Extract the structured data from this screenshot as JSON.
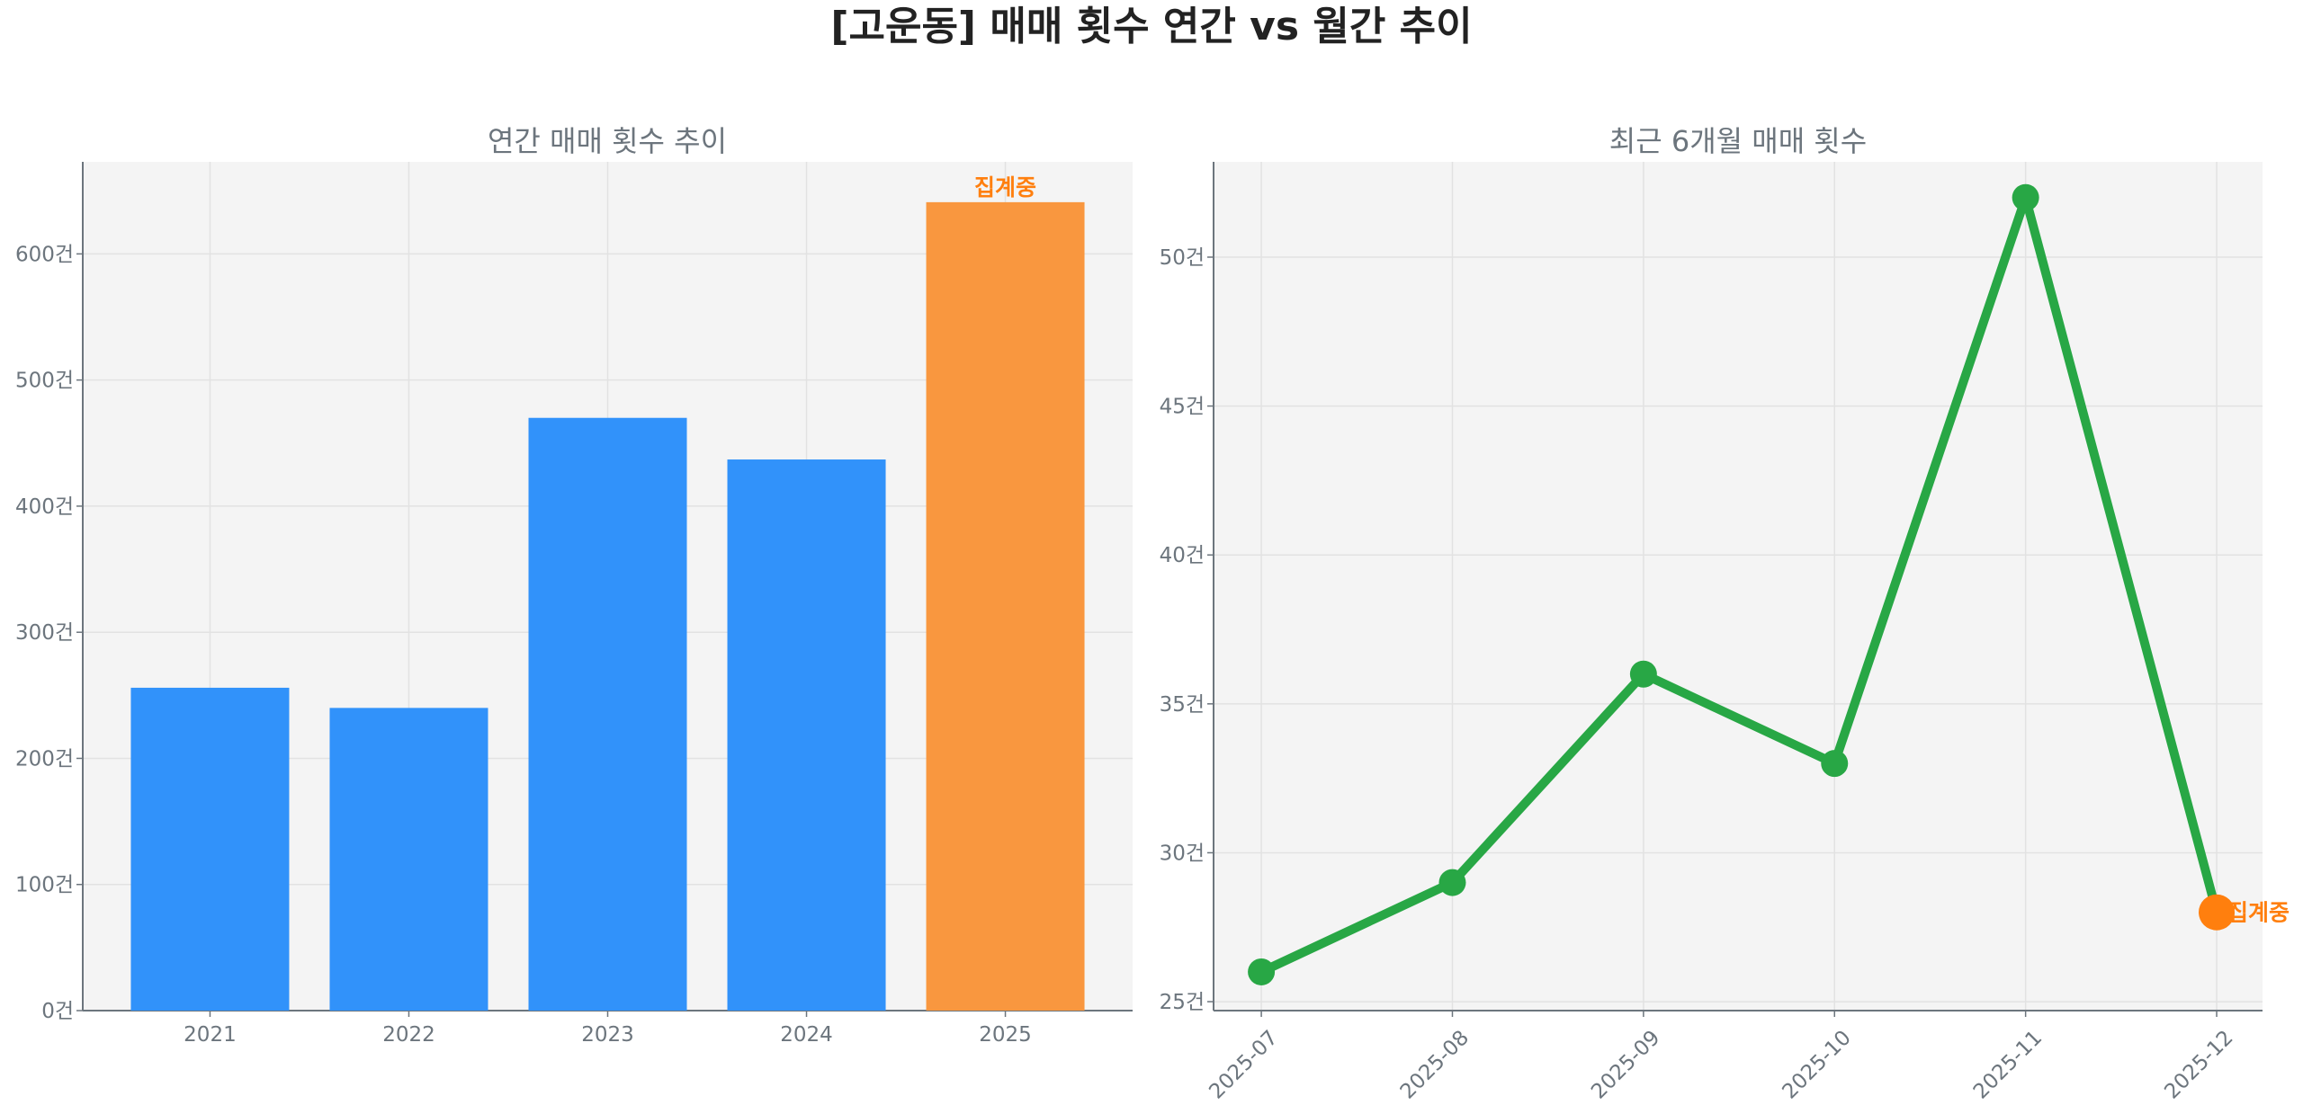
{
  "title": "[고운동] 매매 횟수 연간 vs 월간 추이",
  "colors": {
    "bar": "#3192fa",
    "bar_partial": "#f9973f",
    "line": "#28a745",
    "partial_point": "#ff7f0e",
    "plot_bg": "#f4f4f4",
    "text": "#6c757d"
  },
  "chart_data": [
    {
      "type": "bar",
      "title": "연간 매매 횟수 추이",
      "categories": [
        "2021",
        "2022",
        "2023",
        "2024",
        "2025"
      ],
      "values": [
        256,
        240,
        470,
        437,
        641
      ],
      "highlight_index": 4,
      "annotation": "집계중",
      "ylim": [
        0,
        673
      ],
      "yticks": [
        0,
        100,
        200,
        300,
        400,
        500,
        600
      ],
      "ytick_suffix": "건",
      "grid": true
    },
    {
      "type": "line",
      "title": "최근 6개월 매매 횟수",
      "categories": [
        "2025-07",
        "2025-08",
        "2025-09",
        "2025-10",
        "2025-11",
        "2025-12"
      ],
      "values": [
        26,
        29,
        36,
        33,
        52,
        28
      ],
      "highlight_index": 5,
      "annotation": "집계중",
      "ylim": [
        24.7,
        53.2
      ],
      "yticks": [
        25,
        30,
        35,
        40,
        45,
        50
      ],
      "ytick_suffix": "건",
      "grid": true
    }
  ]
}
